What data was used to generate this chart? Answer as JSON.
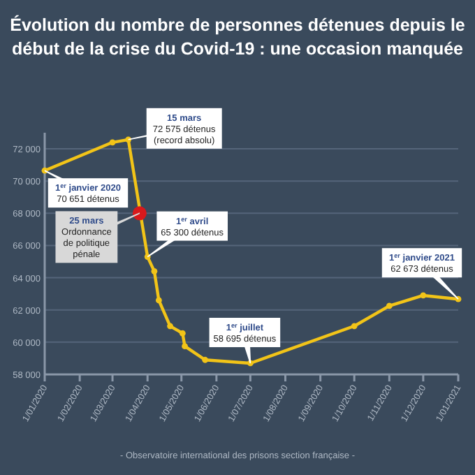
{
  "chart_data": {
    "type": "line",
    "title": "Évolution du nombre de personnes détenues depuis le début de la crise du Covid-19 : une occasion manquée",
    "x": [
      "2020-01-01",
      "2020-03-01",
      "2020-03-15",
      "2020-04-01",
      "2020-04-07",
      "2020-04-11",
      "2020-04-21",
      "2020-05-02",
      "2020-05-04",
      "2020-05-22",
      "2020-07-01",
      "2020-10-01",
      "2020-11-01",
      "2020-12-01",
      "2021-01-01"
    ],
    "series": [
      {
        "color": "#f2c418",
        "values": [
          70651,
          72400,
          72575,
          65300,
          64400,
          62600,
          61000,
          60550,
          59750,
          58900,
          58695,
          61000,
          62250,
          62900,
          62673
        ]
      },
      {
        "type": "scatter",
        "color": "#d7191c",
        "x": [
          "2020-03-25"
        ],
        "values": [
          68000
        ]
      }
    ],
    "xlim": [
      "2020-01-01",
      "2021-01-01"
    ],
    "xticks": [
      {
        "value": "2020-01-01",
        "label": "1/01/2020"
      },
      {
        "value": "2020-02-01",
        "label": "1/02/2020"
      },
      {
        "value": "2020-03-01",
        "label": "1/03/2020"
      },
      {
        "value": "2020-04-01",
        "label": "1/04/2020"
      },
      {
        "value": "2020-05-01",
        "label": "1/05/2020"
      },
      {
        "value": "2020-06-01",
        "label": "1/06/2020"
      },
      {
        "value": "2020-07-01",
        "label": "1/07/2020"
      },
      {
        "value": "2020-08-01",
        "label": "1/08/2020"
      },
      {
        "value": "2020-09-01",
        "label": "1/09/2020"
      },
      {
        "value": "2020-10-01",
        "label": "1/10/2020"
      },
      {
        "value": "2020-11-01",
        "label": "1/11/2020"
      },
      {
        "value": "2020-12-01",
        "label": "1/12/2020"
      },
      {
        "value": "2021-01-01",
        "label": "1/01/2021"
      }
    ],
    "ylim": [
      58000,
      73000
    ],
    "yticks": [
      {
        "value": 58000,
        "label": "58 000"
      },
      {
        "value": 60000,
        "label": "60 000"
      },
      {
        "value": 62000,
        "label": "62 000"
      },
      {
        "value": 64000,
        "label": "64 000"
      },
      {
        "value": 66000,
        "label": "66 000"
      },
      {
        "value": 68000,
        "label": "68 000"
      },
      {
        "value": 70000,
        "label": "70 000"
      },
      {
        "value": 72000,
        "label": "72 000"
      }
    ],
    "grid": "y",
    "marker": "circle",
    "annotations": [
      {
        "text": "1$^{er}$ janvier 2020\n70 651 détenus",
        "x": "2020-01-01",
        "y": 70651
      },
      {
        "text": "15 mars\n72 575 détenus\n(record absolu)",
        "x": "2020-03-15",
        "y": 72575
      },
      {
        "text": "25 mars\nOrdonnance\nde politique\npénale",
        "x": "2020-03-25",
        "y": 68000
      },
      {
        "text": "1$^{er}$ avril\n65 300 détenus",
        "x": "2020-04-01",
        "y": 65300
      },
      {
        "text": "1$^{er}$ juillet\n58 695 détenus",
        "x": "2020-07-01",
        "y": 58695
      },
      {
        "text": "1$^{er}$ janvier 2021\n62 673 détenus",
        "x": "2021-01-01",
        "y": 62673
      },
      "- Observatoire international des prisons section française -"
    ]
  }
}
